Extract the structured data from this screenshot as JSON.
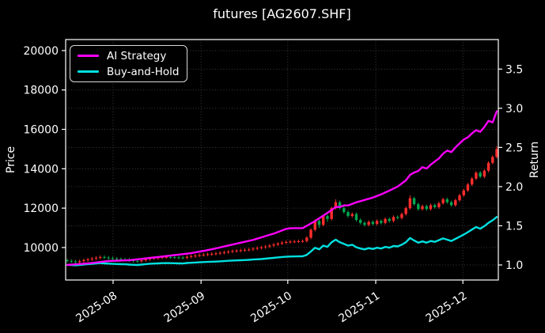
{
  "legend": {
    "items": [
      {
        "label": "AI Strategy",
        "color": "#ff00ff"
      },
      {
        "label": "Buy-and-Hold",
        "color": "#00e0e0"
      }
    ]
  },
  "chart_data": {
    "type": "candlestick+line",
    "title": "futures [AG2607.SHF]",
    "background": "#000000",
    "ylabel_left": "Price",
    "ylabel_right": "Return",
    "legend_position": "upper left",
    "grid": true,
    "grid_color": "#6e6e6e",
    "x_tick_labels": [
      "2025-08",
      "2025-09",
      "2025-10",
      "2025-11",
      "2025-12"
    ],
    "x_tick_index_positions": [
      11.1,
      32.4,
      53.4,
      74.7,
      95.8
    ],
    "price_axis": {
      "ticks": [
        10000,
        12000,
        14000,
        16000,
        18000,
        20000
      ],
      "ylim": [
        8350,
        20560
      ]
    },
    "return_axis": {
      "ticks": [
        1.0,
        1.5,
        2.0,
        2.5,
        3.0,
        3.5
      ],
      "ylim": [
        0.808,
        3.877
      ]
    },
    "candle_colors": {
      "up": "#ff2d2d",
      "down": "#00a850"
    },
    "candles": [
      [
        9350,
        9430,
        9240,
        9320
      ],
      [
        9320,
        9400,
        9210,
        9290
      ],
      [
        9290,
        9370,
        9180,
        9260
      ],
      [
        9260,
        9390,
        9180,
        9310
      ],
      [
        9310,
        9440,
        9230,
        9360
      ],
      [
        9360,
        9480,
        9280,
        9400
      ],
      [
        9400,
        9520,
        9320,
        9440
      ],
      [
        9440,
        9560,
        9360,
        9480
      ],
      [
        9480,
        9600,
        9400,
        9520
      ],
      [
        9520,
        9600,
        9410,
        9490
      ],
      [
        9490,
        9570,
        9380,
        9460
      ],
      [
        9460,
        9540,
        9350,
        9430
      ],
      [
        9430,
        9510,
        9330,
        9410
      ],
      [
        9410,
        9490,
        9310,
        9390
      ],
      [
        9390,
        9470,
        9300,
        9380
      ],
      [
        9380,
        9460,
        9270,
        9350
      ],
      [
        9350,
        9430,
        9240,
        9320
      ],
      [
        9320,
        9400,
        9220,
        9300
      ],
      [
        9300,
        9430,
        9220,
        9350
      ],
      [
        9350,
        9480,
        9270,
        9400
      ],
      [
        9400,
        9530,
        9320,
        9450
      ],
      [
        9450,
        9550,
        9370,
        9470
      ],
      [
        9470,
        9570,
        9390,
        9490
      ],
      [
        9490,
        9590,
        9410,
        9510
      ],
      [
        9510,
        9600,
        9430,
        9520
      ],
      [
        9520,
        9590,
        9430,
        9510
      ],
      [
        9510,
        9580,
        9420,
        9500
      ],
      [
        9500,
        9570,
        9410,
        9490
      ],
      [
        9490,
        9560,
        9400,
        9480
      ],
      [
        9480,
        9610,
        9400,
        9530
      ],
      [
        9530,
        9640,
        9450,
        9560
      ],
      [
        9560,
        9670,
        9480,
        9590
      ],
      [
        9590,
        9700,
        9510,
        9620
      ],
      [
        9620,
        9720,
        9540,
        9640
      ],
      [
        9640,
        9740,
        9560,
        9660
      ],
      [
        9660,
        9760,
        9580,
        9680
      ],
      [
        9680,
        9780,
        9600,
        9700
      ],
      [
        9700,
        9810,
        9620,
        9730
      ],
      [
        9730,
        9840,
        9650,
        9760
      ],
      [
        9760,
        9870,
        9680,
        9790
      ],
      [
        9790,
        9900,
        9710,
        9820
      ],
      [
        9820,
        9920,
        9740,
        9840
      ],
      [
        9840,
        9940,
        9760,
        9860
      ],
      [
        9860,
        9960,
        9780,
        9880
      ],
      [
        9880,
        9980,
        9800,
        9900
      ],
      [
        9900,
        10020,
        9820,
        9940
      ],
      [
        9940,
        10060,
        9860,
        9980
      ],
      [
        9980,
        10090,
        9900,
        10010
      ],
      [
        10010,
        10130,
        9930,
        10050
      ],
      [
        10050,
        10180,
        9970,
        10100
      ],
      [
        10100,
        10230,
        10020,
        10150
      ],
      [
        10150,
        10280,
        10070,
        10200
      ],
      [
        10200,
        10330,
        10120,
        10250
      ],
      [
        10250,
        10360,
        10170,
        10280
      ],
      [
        10280,
        10380,
        10200,
        10300
      ],
      [
        10300,
        10390,
        10220,
        10310
      ],
      [
        10310,
        10400,
        10230,
        10320
      ],
      [
        10320,
        10410,
        10240,
        10330
      ],
      [
        10330,
        10580,
        10250,
        10500
      ],
      [
        10500,
        10980,
        10420,
        10900
      ],
      [
        10900,
        11430,
        10820,
        11350
      ],
      [
        11350,
        11430,
        11000,
        11150
      ],
      [
        11150,
        11680,
        11070,
        11600
      ],
      [
        11600,
        11680,
        11300,
        11450
      ],
      [
        11450,
        12080,
        11370,
        12000
      ],
      [
        12000,
        12450,
        11920,
        12300
      ],
      [
        12300,
        12380,
        11920,
        12000
      ],
      [
        12000,
        12080,
        11720,
        11800
      ],
      [
        11800,
        11880,
        11520,
        11600
      ],
      [
        11600,
        11780,
        11520,
        11700
      ],
      [
        11700,
        11780,
        11320,
        11400
      ],
      [
        11400,
        11480,
        11170,
        11250
      ],
      [
        11250,
        11330,
        11070,
        11150
      ],
      [
        11150,
        11380,
        11070,
        11300
      ],
      [
        11300,
        11380,
        11120,
        11200
      ],
      [
        11200,
        11430,
        11120,
        11350
      ],
      [
        11350,
        11430,
        11170,
        11250
      ],
      [
        11250,
        11530,
        11170,
        11450
      ],
      [
        11450,
        11530,
        11270,
        11350
      ],
      [
        11350,
        11630,
        11270,
        11550
      ],
      [
        11550,
        11630,
        11420,
        11500
      ],
      [
        11500,
        11780,
        11420,
        11700
      ],
      [
        11700,
        12080,
        11620,
        12000
      ],
      [
        12000,
        12650,
        11920,
        12500
      ],
      [
        12500,
        12580,
        12120,
        12200
      ],
      [
        12200,
        12280,
        11870,
        11950
      ],
      [
        11950,
        12180,
        11870,
        12100
      ],
      [
        12100,
        12180,
        11870,
        11950
      ],
      [
        11950,
        12230,
        11870,
        12150
      ],
      [
        12150,
        12230,
        11970,
        12050
      ],
      [
        12050,
        12330,
        11970,
        12250
      ],
      [
        12250,
        12530,
        12170,
        12450
      ],
      [
        12450,
        12530,
        12220,
        12300
      ],
      [
        12300,
        12380,
        12070,
        12150
      ],
      [
        12150,
        12480,
        12070,
        12400
      ],
      [
        12400,
        12730,
        12320,
        12650
      ],
      [
        12650,
        12980,
        12570,
        12900
      ],
      [
        12900,
        13280,
        12820,
        13200
      ],
      [
        13200,
        13580,
        13120,
        13500
      ],
      [
        13500,
        13880,
        13420,
        13800
      ],
      [
        13800,
        13880,
        13520,
        13600
      ],
      [
        13600,
        13980,
        13520,
        13900
      ],
      [
        13900,
        14380,
        13820,
        14300
      ],
      [
        14300,
        14680,
        14220,
        14600
      ],
      [
        14600,
        15150,
        14520,
        15000
      ]
    ],
    "series": [
      {
        "name": "AI Strategy",
        "axis": "return",
        "color": "#ff00ff",
        "values": [
          1.0,
          1.004,
          1.008,
          1.012,
          1.016,
          1.02,
          1.026,
          1.032,
          1.038,
          1.044,
          1.05,
          1.052,
          1.054,
          1.056,
          1.058,
          1.06,
          1.066,
          1.072,
          1.078,
          1.084,
          1.09,
          1.096,
          1.102,
          1.108,
          1.114,
          1.12,
          1.126,
          1.132,
          1.138,
          1.144,
          1.15,
          1.16,
          1.17,
          1.18,
          1.19,
          1.2,
          1.212,
          1.224,
          1.236,
          1.248,
          1.26,
          1.272,
          1.284,
          1.296,
          1.308,
          1.32,
          1.336,
          1.352,
          1.368,
          1.384,
          1.4,
          1.42,
          1.44,
          1.46,
          1.468,
          1.47,
          1.47,
          1.47,
          1.5,
          1.53,
          1.56,
          1.595,
          1.63,
          1.665,
          1.7,
          1.74,
          1.74,
          1.76,
          1.76,
          1.78,
          1.8,
          1.815,
          1.83,
          1.845,
          1.86,
          1.88,
          1.9,
          1.925,
          1.95,
          1.975,
          2.0,
          2.04,
          2.08,
          2.15,
          2.18,
          2.2,
          2.25,
          2.23,
          2.28,
          2.32,
          2.36,
          2.42,
          2.46,
          2.44,
          2.5,
          2.55,
          2.6,
          2.63,
          2.68,
          2.72,
          2.7,
          2.76,
          2.84,
          2.82,
          2.96
        ]
      },
      {
        "name": "Buy-and-Hold",
        "axis": "return",
        "color": "#00e0e0",
        "values": [
          1.002,
          0.999,
          0.996,
          1.001,
          1.006,
          1.011,
          1.015,
          1.019,
          1.024,
          1.02,
          1.017,
          1.014,
          1.012,
          1.01,
          1.009,
          1.005,
          1.002,
          1.0,
          1.005,
          1.011,
          1.016,
          1.018,
          1.02,
          1.023,
          1.024,
          1.023,
          1.022,
          1.02,
          1.019,
          1.025,
          1.028,
          1.031,
          1.034,
          1.037,
          1.039,
          1.041,
          1.043,
          1.046,
          1.049,
          1.053,
          1.056,
          1.058,
          1.06,
          1.062,
          1.065,
          1.069,
          1.073,
          1.076,
          1.081,
          1.086,
          1.091,
          1.097,
          1.102,
          1.105,
          1.108,
          1.109,
          1.11,
          1.111,
          1.129,
          1.172,
          1.22,
          1.199,
          1.247,
          1.231,
          1.29,
          1.323,
          1.29,
          1.269,
          1.247,
          1.258,
          1.226,
          1.21,
          1.199,
          1.215,
          1.204,
          1.22,
          1.21,
          1.231,
          1.22,
          1.242,
          1.237,
          1.258,
          1.29,
          1.344,
          1.312,
          1.285,
          1.301,
          1.285,
          1.306,
          1.296,
          1.317,
          1.339,
          1.323,
          1.306,
          1.333,
          1.36,
          1.387,
          1.419,
          1.452,
          1.484,
          1.462,
          1.495,
          1.538,
          1.57,
          1.613
        ]
      }
    ]
  }
}
